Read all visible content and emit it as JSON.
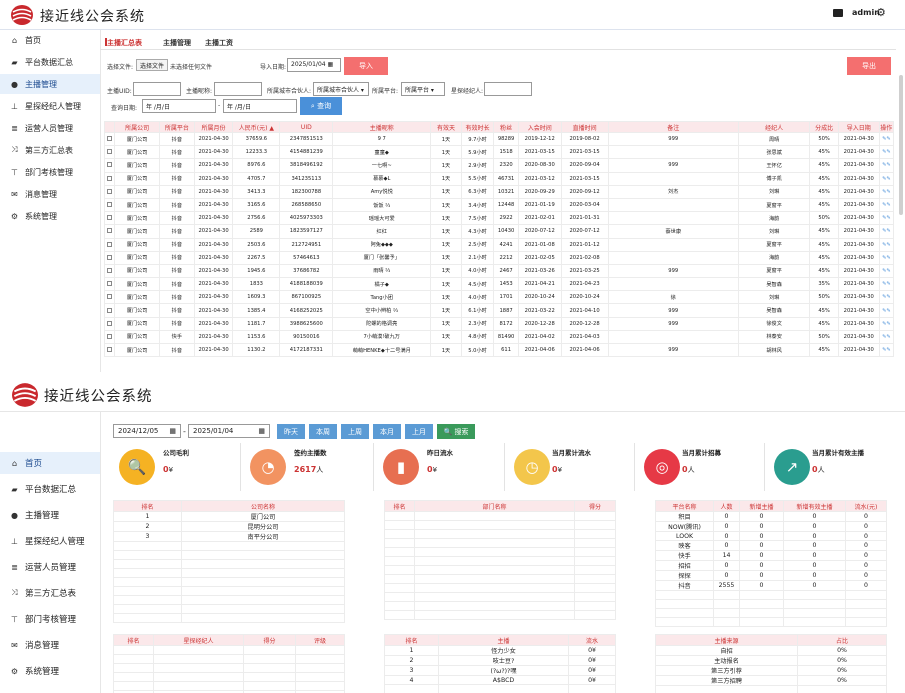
{
  "app": {
    "title": "接近线公会系统",
    "user": "admin"
  },
  "sidebar": {
    "items": [
      {
        "label": "首页",
        "icon": "home-icon"
      },
      {
        "label": "平台数据汇总",
        "icon": "car-icon"
      },
      {
        "label": "主播管理",
        "icon": "user-icon"
      },
      {
        "label": "星探经纪人管理",
        "icon": "org-chart-icon"
      },
      {
        "label": "运营人员管理",
        "icon": "list-icon"
      },
      {
        "label": "第三方汇总表",
        "icon": "shuffle-icon"
      },
      {
        "label": "部门考核管理",
        "icon": "dept-icon"
      },
      {
        "label": "消息管理",
        "icon": "mail-icon"
      },
      {
        "label": "系统管理",
        "icon": "gear-icon"
      }
    ]
  },
  "anchor_page": {
    "tabs": [
      "主播汇总表",
      "主播管理",
      "主播工资"
    ],
    "file": {
      "label": "选择文件:",
      "button": "选择文件",
      "status": "未选择任何文件"
    },
    "import_date": {
      "label": "导入日期:",
      "value": "2025/01/04"
    },
    "import_btn": "导入",
    "export_btn": "导出",
    "filters": {
      "uid_label": "主播UID:",
      "nick_label": "主播昵称:",
      "partner_label": "所属城市合伙人:",
      "partner_value": "所属城市合伙人",
      "platform_label": "所属平台:",
      "platform_value": "所属平台",
      "agent_label": "星探经纪人:",
      "date_label": "查询日期:",
      "date_from": "年 /月/日",
      "date_to": "年 /月/日",
      "search_btn": "查询"
    },
    "columns": [
      "所属公司",
      "所属平台",
      "所属月份",
      "人民币(元)",
      "UID",
      "主播昵称",
      "有效天",
      "有效时长",
      "粉丝",
      "入会时间",
      "直播时间",
      "备注",
      "经纪人",
      "分成比",
      "导入日期",
      "操作"
    ],
    "rows": [
      [
        "厦门公司",
        "抖音",
        "2021-04-30",
        "37659.6",
        "2347851513",
        "9 7",
        "1天",
        "9.7小时",
        "98289",
        "2019-12-12",
        "2019-08-02",
        "999",
        "周晴",
        "50%",
        "2021-04-30"
      ],
      [
        "厦门公司",
        "抖音",
        "2021-04-30",
        "12233.3",
        "4154881239",
        "童童◆",
        "1天",
        "5.9小时",
        "1518",
        "2021-03-15",
        "2021-03-15",
        "",
        "张思斌",
        "45%",
        "2021-04-30"
      ],
      [
        "厦门公司",
        "抖音",
        "2021-04-30",
        "8976.6",
        "3818496192",
        "一七啊~",
        "1天",
        "2.9小时",
        "2320",
        "2020-08-30",
        "2020-09-04",
        "999",
        "王怀亿",
        "45%",
        "2021-04-30"
      ],
      [
        "厦门公司",
        "抖音",
        "2021-04-30",
        "4705.7",
        "341235113",
        "慕慕◆L",
        "1天",
        "5.5小时",
        "46731",
        "2021-03-12",
        "2021-03-15",
        "",
        "傅子凯",
        "45%",
        "2021-04-30"
      ],
      [
        "厦门公司",
        "抖音",
        "2021-04-30",
        "3413.3",
        "182300788",
        "Amy悦悦",
        "1天",
        "6.3小时",
        "10321",
        "2020-09-29",
        "2020-09-12",
        "刘杰",
        "刘琳",
        "45%",
        "2021-04-30"
      ],
      [
        "厦门公司",
        "抖音",
        "2021-04-30",
        "3165.6",
        "268588650",
        "饭饭 ⅔",
        "1天",
        "3.4小时",
        "12448",
        "2021-01-19",
        "2020-03-04",
        "",
        "夏窗平",
        "45%",
        "2021-04-30"
      ],
      [
        "厦门公司",
        "抖音",
        "2021-04-30",
        "2756.6",
        "4025973303",
        "瑶瑶大可爱",
        "1天",
        "7.5小时",
        "2922",
        "2021-02-01",
        "2021-01-31",
        "",
        "海韵",
        "50%",
        "2021-04-30"
      ],
      [
        "厦门公司",
        "抖音",
        "2021-04-30",
        "2589",
        "1823597127",
        "红红",
        "1天",
        "4.3小时",
        "10430",
        "2020-07-12",
        "2020-07-12",
        "蔡世康",
        "刘琳",
        "45%",
        "2021-04-30"
      ],
      [
        "厦门公司",
        "抖音",
        "2021-04-30",
        "2503.6",
        "212724951",
        "阿兔◆◆◆",
        "1天",
        "2.5小时",
        "4241",
        "2021-01-08",
        "2021-01-12",
        "",
        "夏窗平",
        "45%",
        "2021-04-30"
      ],
      [
        "厦门公司",
        "抖音",
        "2021-04-30",
        "2267.5",
        "57464613",
        "厦门「张馨予」",
        "1天",
        "2.1小时",
        "2212",
        "2021-02-05",
        "2021-02-08",
        "",
        "海韵",
        "45%",
        "2021-04-30"
      ],
      [
        "厦门公司",
        "抖音",
        "2021-04-30",
        "1945.6",
        "37686782",
        "雨晴 ⅔",
        "1天",
        "4.0小时",
        "2467",
        "2021-03-26",
        "2021-03-25",
        "999",
        "夏窗平",
        "45%",
        "2021-04-30"
      ],
      [
        "厦门公司",
        "抖音",
        "2021-04-30",
        "1833",
        "4188188039",
        "橘子◆",
        "1天",
        "4.5小时",
        "1453",
        "2021-04-21",
        "2021-04-23",
        "",
        "吴智森",
        "35%",
        "2021-04-30"
      ],
      [
        "厦门公司",
        "抖音",
        "2021-04-30",
        "1609.3",
        "867100925",
        "Tang小团",
        "1天",
        "4.0小时",
        "1701",
        "2020-10-24",
        "2020-10-24",
        "徐",
        "刘琳",
        "50%",
        "2021-04-30"
      ],
      [
        "厦门公司",
        "抖音",
        "2021-04-30",
        "1385.4",
        "4168252025",
        "空中小辫柏 ⅔",
        "1天",
        "6.1小时",
        "1887",
        "2021-03-22",
        "2021-04-10",
        "999",
        "吴智森",
        "45%",
        "2021-04-30"
      ],
      [
        "厦门公司",
        "抖音",
        "2021-04-30",
        "1181.7",
        "3988625600",
        "陀螺的格调亮",
        "1天",
        "2.3小时",
        "8172",
        "2020-12-28",
        "2020-12-28",
        "999",
        "徐俊文",
        "45%",
        "2021-04-30"
      ],
      [
        "厦门公司",
        "快手",
        "2021-04-30",
        "1153.6",
        "90150016",
        "7小萌漠!破九万",
        "1天",
        "4.8小时",
        "81490",
        "2021-04-02",
        "2021-04-03",
        "",
        "林泰安",
        "50%",
        "2021-04-30"
      ],
      [
        "厦门公司",
        "抖音",
        "2021-04-30",
        "1130.2",
        "4172187331",
        "萌萌HENKE◆十二号满月",
        "1天",
        "5.0小时",
        "611",
        "2021-04-06",
        "2021-04-06",
        "999",
        "胡林风",
        "45%",
        "2021-04-30"
      ]
    ]
  },
  "home": {
    "date_from": "2024/12/05",
    "date_to": "2025/01/04",
    "quick": [
      "昨天",
      "本周",
      "上周",
      "本月",
      "上月"
    ],
    "search_btn": "搜索",
    "cards": [
      {
        "title": "公司毛利",
        "value": "0",
        "unit": "¥",
        "icon": "search-chart-icon"
      },
      {
        "title": "签约主播数",
        "value": "2617",
        "unit": "人",
        "icon": "pie-chart-icon"
      },
      {
        "title": "昨日流水",
        "value": "0",
        "unit": "¥",
        "icon": "bar-chart-icon"
      },
      {
        "title": "当月累计流水",
        "value": "0",
        "unit": "¥",
        "icon": "clock-coin-icon"
      },
      {
        "title": "当月累计招募",
        "value": "0",
        "unit": "人",
        "icon": "target-icon"
      },
      {
        "title": "当月累计有效主播",
        "value": "0",
        "unit": "人",
        "icon": "line-chart-icon"
      }
    ],
    "company_rank": {
      "cols": [
        "排名",
        "公司名称"
      ],
      "rows": [
        [
          "1",
          "厦门公司"
        ],
        [
          "2",
          "昆明分公司"
        ],
        [
          "3",
          "南平分公司"
        ]
      ]
    },
    "dept_rank": {
      "cols": [
        "排名",
        "部门名称",
        "得分"
      ],
      "rows": []
    },
    "platform": {
      "cols": [
        "平台名称",
        "人数",
        "新增主播",
        "新增有效主播",
        "流水(元)"
      ],
      "rows": [
        [
          "积目",
          "0",
          "0",
          "0",
          "0"
        ],
        [
          "NOW(腾讯)",
          "0",
          "0",
          "0",
          "0"
        ],
        [
          "LOOK",
          "0",
          "0",
          "0",
          "0"
        ],
        [
          "映客",
          "0",
          "0",
          "0",
          "0"
        ],
        [
          "快手",
          "14",
          "0",
          "0",
          "0"
        ],
        [
          "招招",
          "0",
          "0",
          "0",
          "0"
        ],
        [
          "探探",
          "0",
          "0",
          "0",
          "0"
        ],
        [
          "抖音",
          "2555",
          "0",
          "0",
          "0"
        ]
      ]
    },
    "agent_rank": {
      "cols": [
        "排名",
        "星探经纪人",
        "得分",
        "评级"
      ],
      "rows": []
    },
    "anchor_rank": {
      "cols": [
        "排名",
        "主播",
        "流水"
      ],
      "rows": [
        [
          "1",
          "怪力少女",
          "0¥"
        ],
        [
          "2",
          "吱士豆?",
          "0¥"
        ],
        [
          "3",
          "(?ω?)?嘿",
          "0¥"
        ],
        [
          "4",
          "A$BCD",
          "0¥"
        ]
      ]
    },
    "source": {
      "cols": [
        "主播来源",
        "占比"
      ],
      "rows": [
        [
          "自招",
          "0%"
        ],
        [
          "主动报名",
          "0%"
        ],
        [
          "第三方引荐",
          "0%"
        ],
        [
          "第三方招聘",
          "0%"
        ]
      ]
    }
  }
}
